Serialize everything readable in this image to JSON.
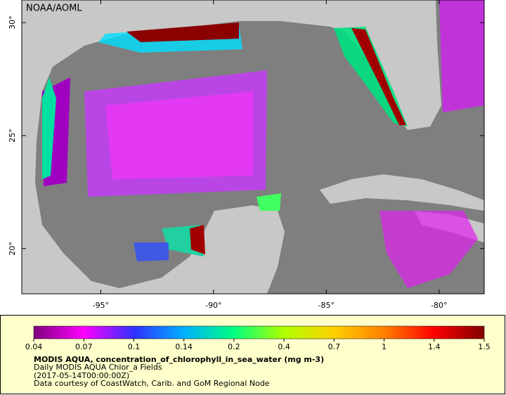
{
  "map": {
    "credit": "NOAA/AOML",
    "xlim": [
      -98.5,
      -78
    ],
    "ylim": [
      18,
      31
    ],
    "xticks": [
      {
        "value": -95,
        "label": "-95°"
      },
      {
        "value": -90,
        "label": "-90°"
      },
      {
        "value": -85,
        "label": "-85°"
      },
      {
        "value": -80,
        "label": "-80°"
      }
    ],
    "yticks": [
      {
        "value": 20,
        "label": "20°"
      },
      {
        "value": 25,
        "label": "25°"
      },
      {
        "value": 30,
        "label": "30°"
      }
    ]
  },
  "colorbar": {
    "ticks": [
      0.04,
      0.07,
      0.1,
      0.14,
      0.2,
      0.4,
      0.7,
      1,
      1.4,
      1.5
    ],
    "colors": [
      "#7f007f",
      "#ff00ff",
      "#3030ff",
      "#00b0ff",
      "#00ff80",
      "#b0ff00",
      "#ffd000",
      "#ff8000",
      "#ff0000",
      "#800000"
    ]
  },
  "legend": {
    "title": "MODIS AQUA, concentration_of_chlorophyll_in_sea_water (mg m-3)",
    "lines": [
      "Daily MODIS AQUA Chlor_a Fields",
      "(2017-05-14T00:00:00Z)",
      "Data courtesy of CoastWatch, Carib. and GoM Regional Node"
    ]
  }
}
